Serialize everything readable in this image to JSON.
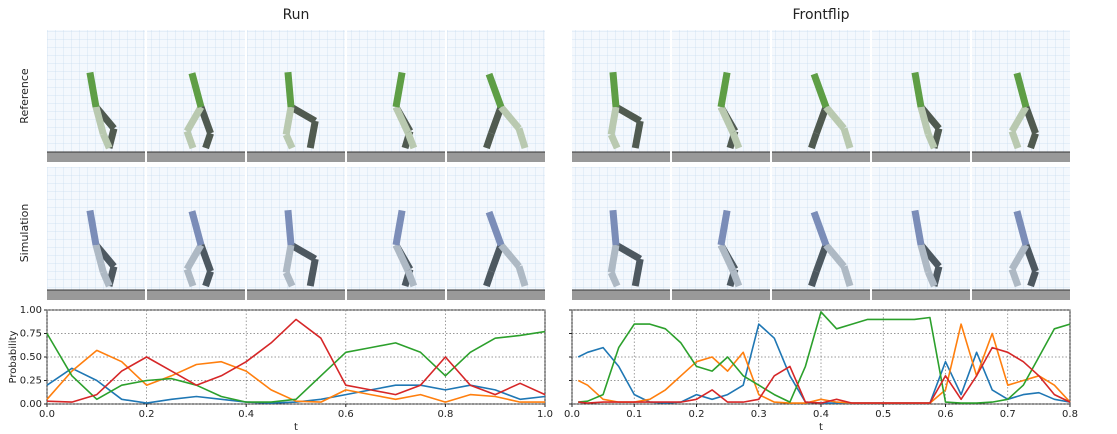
{
  "row_labels": [
    "Reference",
    "Simulation"
  ],
  "chart_data": [
    {
      "type": "line",
      "title": "Run",
      "xlabel": "t",
      "ylabel": "Probability",
      "x": [
        0.0,
        0.05,
        0.1,
        0.15,
        0.2,
        0.25,
        0.3,
        0.35,
        0.4,
        0.45,
        0.5,
        0.55,
        0.6,
        0.65,
        0.7,
        0.75,
        0.8,
        0.85,
        0.9,
        0.95,
        1.0
      ],
      "series": [
        {
          "color": "#1f77b4",
          "values": [
            0.2,
            0.38,
            0.25,
            0.05,
            0.01,
            0.05,
            0.08,
            0.05,
            0.02,
            0.01,
            0.02,
            0.05,
            0.1,
            0.15,
            0.2,
            0.2,
            0.15,
            0.2,
            0.15,
            0.05,
            0.08
          ]
        },
        {
          "color": "#ff7f0e",
          "values": [
            0.05,
            0.35,
            0.57,
            0.45,
            0.2,
            0.3,
            0.42,
            0.45,
            0.35,
            0.15,
            0.03,
            0.02,
            0.15,
            0.1,
            0.05,
            0.1,
            0.02,
            0.1,
            0.08,
            0.02,
            0.02
          ]
        },
        {
          "color": "#2ca02c",
          "values": [
            0.75,
            0.3,
            0.05,
            0.2,
            0.25,
            0.27,
            0.2,
            0.08,
            0.02,
            0.02,
            0.05,
            0.3,
            0.55,
            0.6,
            0.65,
            0.55,
            0.3,
            0.55,
            0.7,
            0.73,
            0.77
          ]
        },
        {
          "color": "#d62728",
          "values": [
            0.03,
            0.02,
            0.1,
            0.35,
            0.5,
            0.35,
            0.2,
            0.3,
            0.45,
            0.65,
            0.9,
            0.7,
            0.2,
            0.15,
            0.1,
            0.2,
            0.5,
            0.2,
            0.1,
            0.22,
            0.1
          ]
        }
      ],
      "xlim": [
        0,
        1
      ],
      "ylim": [
        0,
        1
      ],
      "xticks": [
        {
          "value": 0,
          "label": "0.0"
        },
        0.2,
        0.4,
        0.6,
        0.8,
        {
          "value": 1,
          "label": "1.0"
        }
      ],
      "yticks": [
        {
          "value": 0,
          "label": "0.00"
        },
        0.25,
        {
          "value": 0.5,
          "label": "0.50"
        },
        0.75,
        {
          "value": 1,
          "label": "1.00"
        }
      ],
      "grid": true
    },
    {
      "type": "line",
      "title": "Frontflip",
      "xlabel": "t",
      "x": [
        0.01,
        0.025,
        0.05,
        0.075,
        0.1,
        0.125,
        0.15,
        0.175,
        0.2,
        0.225,
        0.25,
        0.275,
        0.3,
        0.325,
        0.35,
        0.375,
        0.4,
        0.425,
        0.45,
        0.475,
        0.5,
        0.525,
        0.55,
        0.575,
        0.6,
        0.625,
        0.65,
        0.675,
        0.7,
        0.725,
        0.75,
        0.775,
        0.8
      ],
      "series": [
        {
          "color": "#1f77b4",
          "values": [
            0.5,
            0.55,
            0.6,
            0.4,
            0.1,
            0.02,
            0.01,
            0.02,
            0.1,
            0.05,
            0.1,
            0.2,
            0.85,
            0.7,
            0.3,
            0.02,
            0.01,
            0.01,
            0.01,
            0.01,
            0.01,
            0.01,
            0.01,
            0.01,
            0.45,
            0.1,
            0.55,
            0.15,
            0.05,
            0.1,
            0.12,
            0.05,
            0.02
          ]
        },
        {
          "color": "#ff7f0e",
          "values": [
            0.25,
            0.2,
            0.05,
            0.02,
            0.02,
            0.05,
            0.15,
            0.3,
            0.45,
            0.5,
            0.35,
            0.55,
            0.1,
            0.02,
            0.01,
            0.01,
            0.05,
            0.02,
            0.01,
            0.01,
            0.01,
            0.01,
            0.01,
            0.01,
            0.15,
            0.85,
            0.3,
            0.75,
            0.2,
            0.25,
            0.3,
            0.2,
            0.02
          ]
        },
        {
          "color": "#2ca02c",
          "values": [
            0.02,
            0.03,
            0.1,
            0.6,
            0.85,
            0.85,
            0.8,
            0.65,
            0.4,
            0.35,
            0.5,
            0.3,
            0.2,
            0.1,
            0.02,
            0.4,
            0.98,
            0.8,
            0.85,
            0.9,
            0.9,
            0.9,
            0.9,
            0.92,
            0.02,
            0.01,
            0.01,
            0.02,
            0.05,
            0.2,
            0.5,
            0.8,
            0.85
          ]
        },
        {
          "color": "#d62728",
          "values": [
            0.02,
            0.01,
            0.02,
            0.02,
            0.02,
            0.02,
            0.02,
            0.02,
            0.05,
            0.15,
            0.02,
            0.02,
            0.05,
            0.3,
            0.4,
            0.02,
            0.01,
            0.05,
            0.01,
            0.01,
            0.01,
            0.01,
            0.01,
            0.01,
            0.3,
            0.05,
            0.3,
            0.6,
            0.55,
            0.45,
            0.3,
            0.1,
            0.02
          ]
        }
      ],
      "xlim": [
        0,
        0.8
      ],
      "ylim": [
        0,
        1
      ],
      "xticks": [
        {
          "value": 0,
          "label": "0.0"
        },
        0.1,
        0.2,
        0.3,
        0.4,
        0.5,
        0.6,
        0.7,
        0.8
      ],
      "yticks": [
        0,
        0.25,
        0.5,
        0.75,
        1
      ],
      "grid": true
    }
  ]
}
